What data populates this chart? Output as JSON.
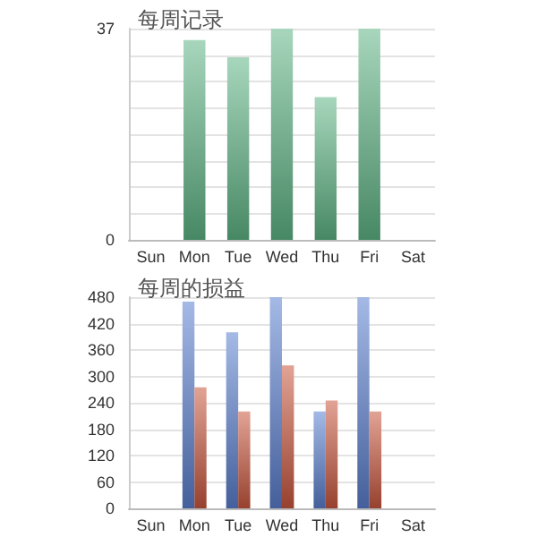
{
  "chart_data": [
    {
      "type": "bar",
      "title": "每周记录",
      "categories": [
        "Sun",
        "Mon",
        "Tue",
        "Wed",
        "Thu",
        "Fri",
        "Sat"
      ],
      "values": [
        null,
        35,
        32,
        37,
        25,
        37,
        null
      ],
      "color": "#5fb585",
      "ylim": [
        0,
        37
      ],
      "yticks": [
        0,
        {
          "value": 4.625,
          "label": null
        },
        {
          "value": 9.25,
          "label": null
        },
        {
          "value": 13.875,
          "label": null
        },
        {
          "value": 18.5,
          "label": null
        },
        {
          "value": 23.125,
          "label": null
        },
        {
          "value": 27.75,
          "label": null
        },
        {
          "value": 32.375,
          "label": null
        },
        37
      ],
      "grid": "y"
    },
    {
      "type": "bar",
      "title": "每周的损益",
      "categories": [
        "Sun",
        "Mon",
        "Tue",
        "Wed",
        "Thu",
        "Fri",
        "Sat"
      ],
      "series": [
        {
          "color": "#5a7fcf",
          "values": [
            null,
            470,
            400,
            480,
            220,
            480,
            null
          ]
        },
        {
          "color": "#c9573f",
          "values": [
            null,
            275,
            220,
            325,
            245,
            220,
            null
          ]
        }
      ],
      "ylim": [
        0,
        480
      ],
      "yticks": [
        0,
        60,
        120,
        180,
        240,
        300,
        360,
        420,
        480
      ],
      "grid": "y"
    }
  ]
}
